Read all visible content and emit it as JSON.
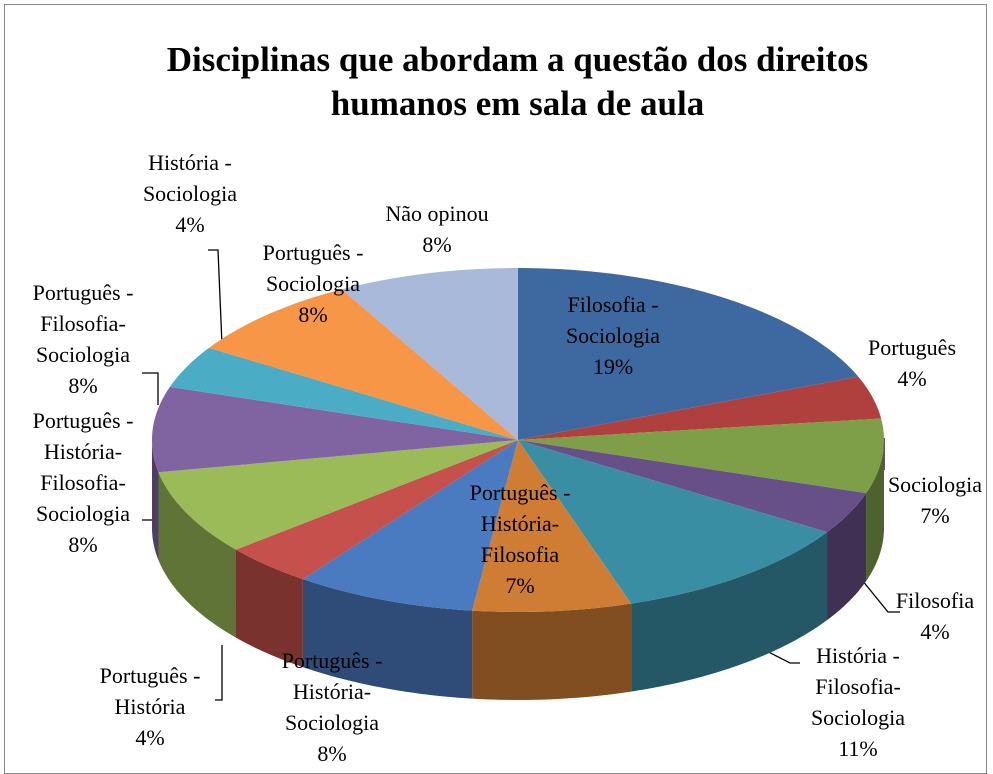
{
  "chart_data": {
    "type": "pie",
    "title": "Disciplinas que abordam a questão dos direitos\nhumanos em sala de aula",
    "categories": [
      "Filosofia -\nSociologia",
      "Português",
      "Sociologia",
      "Filosofia",
      "História -\nFilosofia-\nSociologia",
      "Português -\nHistória-\nFilosofia",
      "Português -\nHistória-\nSociologia",
      "Português -\nHistória",
      "Português -\nHistória-\nFilosofia-\nSociologia",
      "Português -\nFilosofia-\nSociologia",
      "História -\nSociologia",
      "Português -\nSociologia",
      "Não opinou"
    ],
    "values": [
      19,
      4,
      7,
      4,
      11,
      7,
      8,
      4,
      8,
      8,
      4,
      8,
      8
    ],
    "value_labels": [
      "19%",
      "4%",
      "7%",
      "4%",
      "11%",
      "7%",
      "8%",
      "4%",
      "8%",
      "8%",
      "4%",
      "8%",
      "8%"
    ],
    "colors": [
      "#3e69a0",
      "#b0403d",
      "#7e9e48",
      "#674f88",
      "#3a8ea4",
      "#cf7d35",
      "#4a7bc0",
      "#c5504c",
      "#9bbb59",
      "#8064a2",
      "#4bacc6",
      "#f79646",
      "#a9b9d9"
    ]
  }
}
